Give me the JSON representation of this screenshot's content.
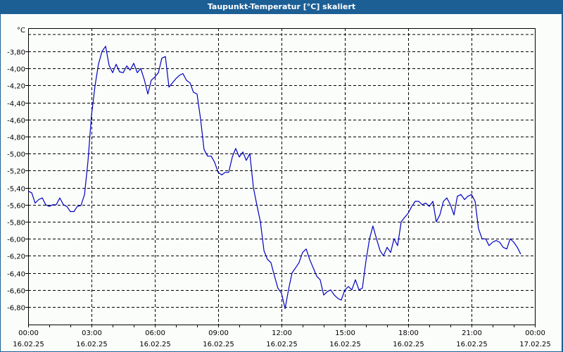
{
  "window": {
    "title": "Taupunkt-Temperatur [°C] skaliert"
  },
  "chart_data": {
    "type": "line",
    "title": "Taupunkt-Temperatur [°C] skaliert",
    "xlabel": "",
    "ylabel": "°C",
    "y_unit_label": "°C",
    "ylim": [
      -7.0,
      -3.6
    ],
    "grid": true,
    "legend": null,
    "y_ticks": [
      "-3,80",
      "-4,00",
      "-4,20",
      "-4,40",
      "-4,60",
      "-4,80",
      "-5,00",
      "-5,20",
      "-5,40",
      "-5,60",
      "-5,80",
      "-6,00",
      "-6,20",
      "-6,40",
      "-6,60",
      "-6,80"
    ],
    "y_tick_values": [
      -3.8,
      -4.0,
      -4.2,
      -4.4,
      -4.6,
      -4.8,
      -5.0,
      -5.2,
      -5.4,
      -5.6,
      -5.8,
      -6.0,
      -6.2,
      -6.4,
      -6.6,
      -6.8
    ],
    "x_ticks": [
      {
        "time": "00:00",
        "date": "16.02.25"
      },
      {
        "time": "03:00",
        "date": "16.02.25"
      },
      {
        "time": "06:00",
        "date": "16.02.25"
      },
      {
        "time": "09:00",
        "date": "16.02.25"
      },
      {
        "time": "12:00",
        "date": "16.02.25"
      },
      {
        "time": "15:00",
        "date": "16.02.25"
      },
      {
        "time": "18:00",
        "date": "16.02.25"
      },
      {
        "time": "21:00",
        "date": "16.02.25"
      },
      {
        "time": "00:00",
        "date": "17.02.25"
      }
    ],
    "series": [
      {
        "name": "Taupunkt-Temperatur",
        "color": "#0000c0",
        "x_hours": [
          0,
          0.17,
          0.33,
          0.5,
          0.67,
          0.83,
          1.0,
          1.17,
          1.33,
          1.5,
          1.67,
          1.83,
          2.0,
          2.17,
          2.33,
          2.5,
          2.67,
          2.83,
          3.0,
          3.17,
          3.33,
          3.5,
          3.67,
          3.83,
          4.0,
          4.17,
          4.33,
          4.5,
          4.67,
          4.83,
          5.0,
          5.17,
          5.33,
          5.5,
          5.67,
          5.83,
          6.0,
          6.17,
          6.33,
          6.5,
          6.67,
          6.83,
          7.0,
          7.17,
          7.33,
          7.5,
          7.67,
          7.83,
          8.0,
          8.17,
          8.33,
          8.5,
          8.67,
          8.83,
          9.0,
          9.17,
          9.33,
          9.5,
          9.67,
          9.83,
          10.0,
          10.17,
          10.33,
          10.5,
          10.67,
          10.83,
          11.0,
          11.17,
          11.33,
          11.5,
          11.67,
          11.83,
          12.0,
          12.17,
          12.33,
          12.5,
          12.67,
          12.83,
          13.0,
          13.17,
          13.33,
          13.5,
          13.67,
          13.83,
          14.0,
          14.17,
          14.33,
          14.5,
          14.67,
          14.83,
          15.0,
          15.17,
          15.33,
          15.5,
          15.67,
          15.83,
          16.0,
          16.17,
          16.33,
          16.5,
          16.67,
          16.83,
          17.0,
          17.17,
          17.33,
          17.5,
          17.67,
          17.83,
          18.0,
          18.17,
          18.33,
          18.5,
          18.67,
          18.83,
          19.0,
          19.17,
          19.33,
          19.5,
          19.67,
          19.83,
          20.0,
          20.17,
          20.33,
          20.5,
          20.67,
          20.83,
          21.0,
          21.17,
          21.33,
          21.5,
          21.67,
          21.83,
          22.0,
          22.17,
          22.33,
          22.5,
          22.67,
          22.83,
          23.0,
          23.17,
          23.33,
          23.5,
          23.67,
          23.83,
          24.0
        ],
        "values": [
          -5.44,
          -5.46,
          -5.58,
          -5.54,
          -5.52,
          -5.6,
          -5.62,
          -5.6,
          -5.6,
          -5.52,
          -5.6,
          -5.62,
          -5.68,
          -5.68,
          -5.62,
          -5.61,
          -5.48,
          -5.1,
          -4.55,
          -4.2,
          -3.95,
          -3.8,
          -3.74,
          -3.96,
          -4.05,
          -3.95,
          -4.04,
          -4.05,
          -3.97,
          -4.02,
          -3.94,
          -4.05,
          -4.0,
          -4.13,
          -4.3,
          -4.14,
          -4.1,
          -4.05,
          -3.88,
          -3.86,
          -4.22,
          -4.17,
          -4.12,
          -4.08,
          -4.06,
          -4.14,
          -4.17,
          -4.28,
          -4.3,
          -4.6,
          -4.95,
          -5.03,
          -5.03,
          -5.1,
          -5.22,
          -5.25,
          -5.22,
          -5.22,
          -5.04,
          -4.94,
          -5.04,
          -4.98,
          -5.08,
          -5.0,
          -5.4,
          -5.6,
          -5.8,
          -6.14,
          -6.24,
          -6.28,
          -6.44,
          -6.58,
          -6.64,
          -6.82,
          -6.6,
          -6.4,
          -6.34,
          -6.28,
          -6.16,
          -6.12,
          -6.24,
          -6.34,
          -6.44,
          -6.48,
          -6.66,
          -6.62,
          -6.6,
          -6.66,
          -6.7,
          -6.72,
          -6.6,
          -6.56,
          -6.6,
          -6.48,
          -6.6,
          -6.58,
          -6.26,
          -6.0,
          -5.85,
          -6.0,
          -6.14,
          -6.2,
          -6.1,
          -6.16,
          -6.0,
          -6.08,
          -5.8,
          -5.75,
          -5.7,
          -5.62,
          -5.56,
          -5.56,
          -5.6,
          -5.58,
          -5.62,
          -5.56,
          -5.8,
          -5.72,
          -5.56,
          -5.52,
          -5.6,
          -5.72,
          -5.5,
          -5.48,
          -5.54,
          -5.5,
          -5.48,
          -5.56,
          -5.88,
          -6.0,
          -6.0,
          -6.08,
          -6.04,
          -6.02,
          -6.04,
          -6.1,
          -6.12,
          -6.0,
          -6.04,
          -6.1,
          -6.18
        ]
      }
    ]
  }
}
